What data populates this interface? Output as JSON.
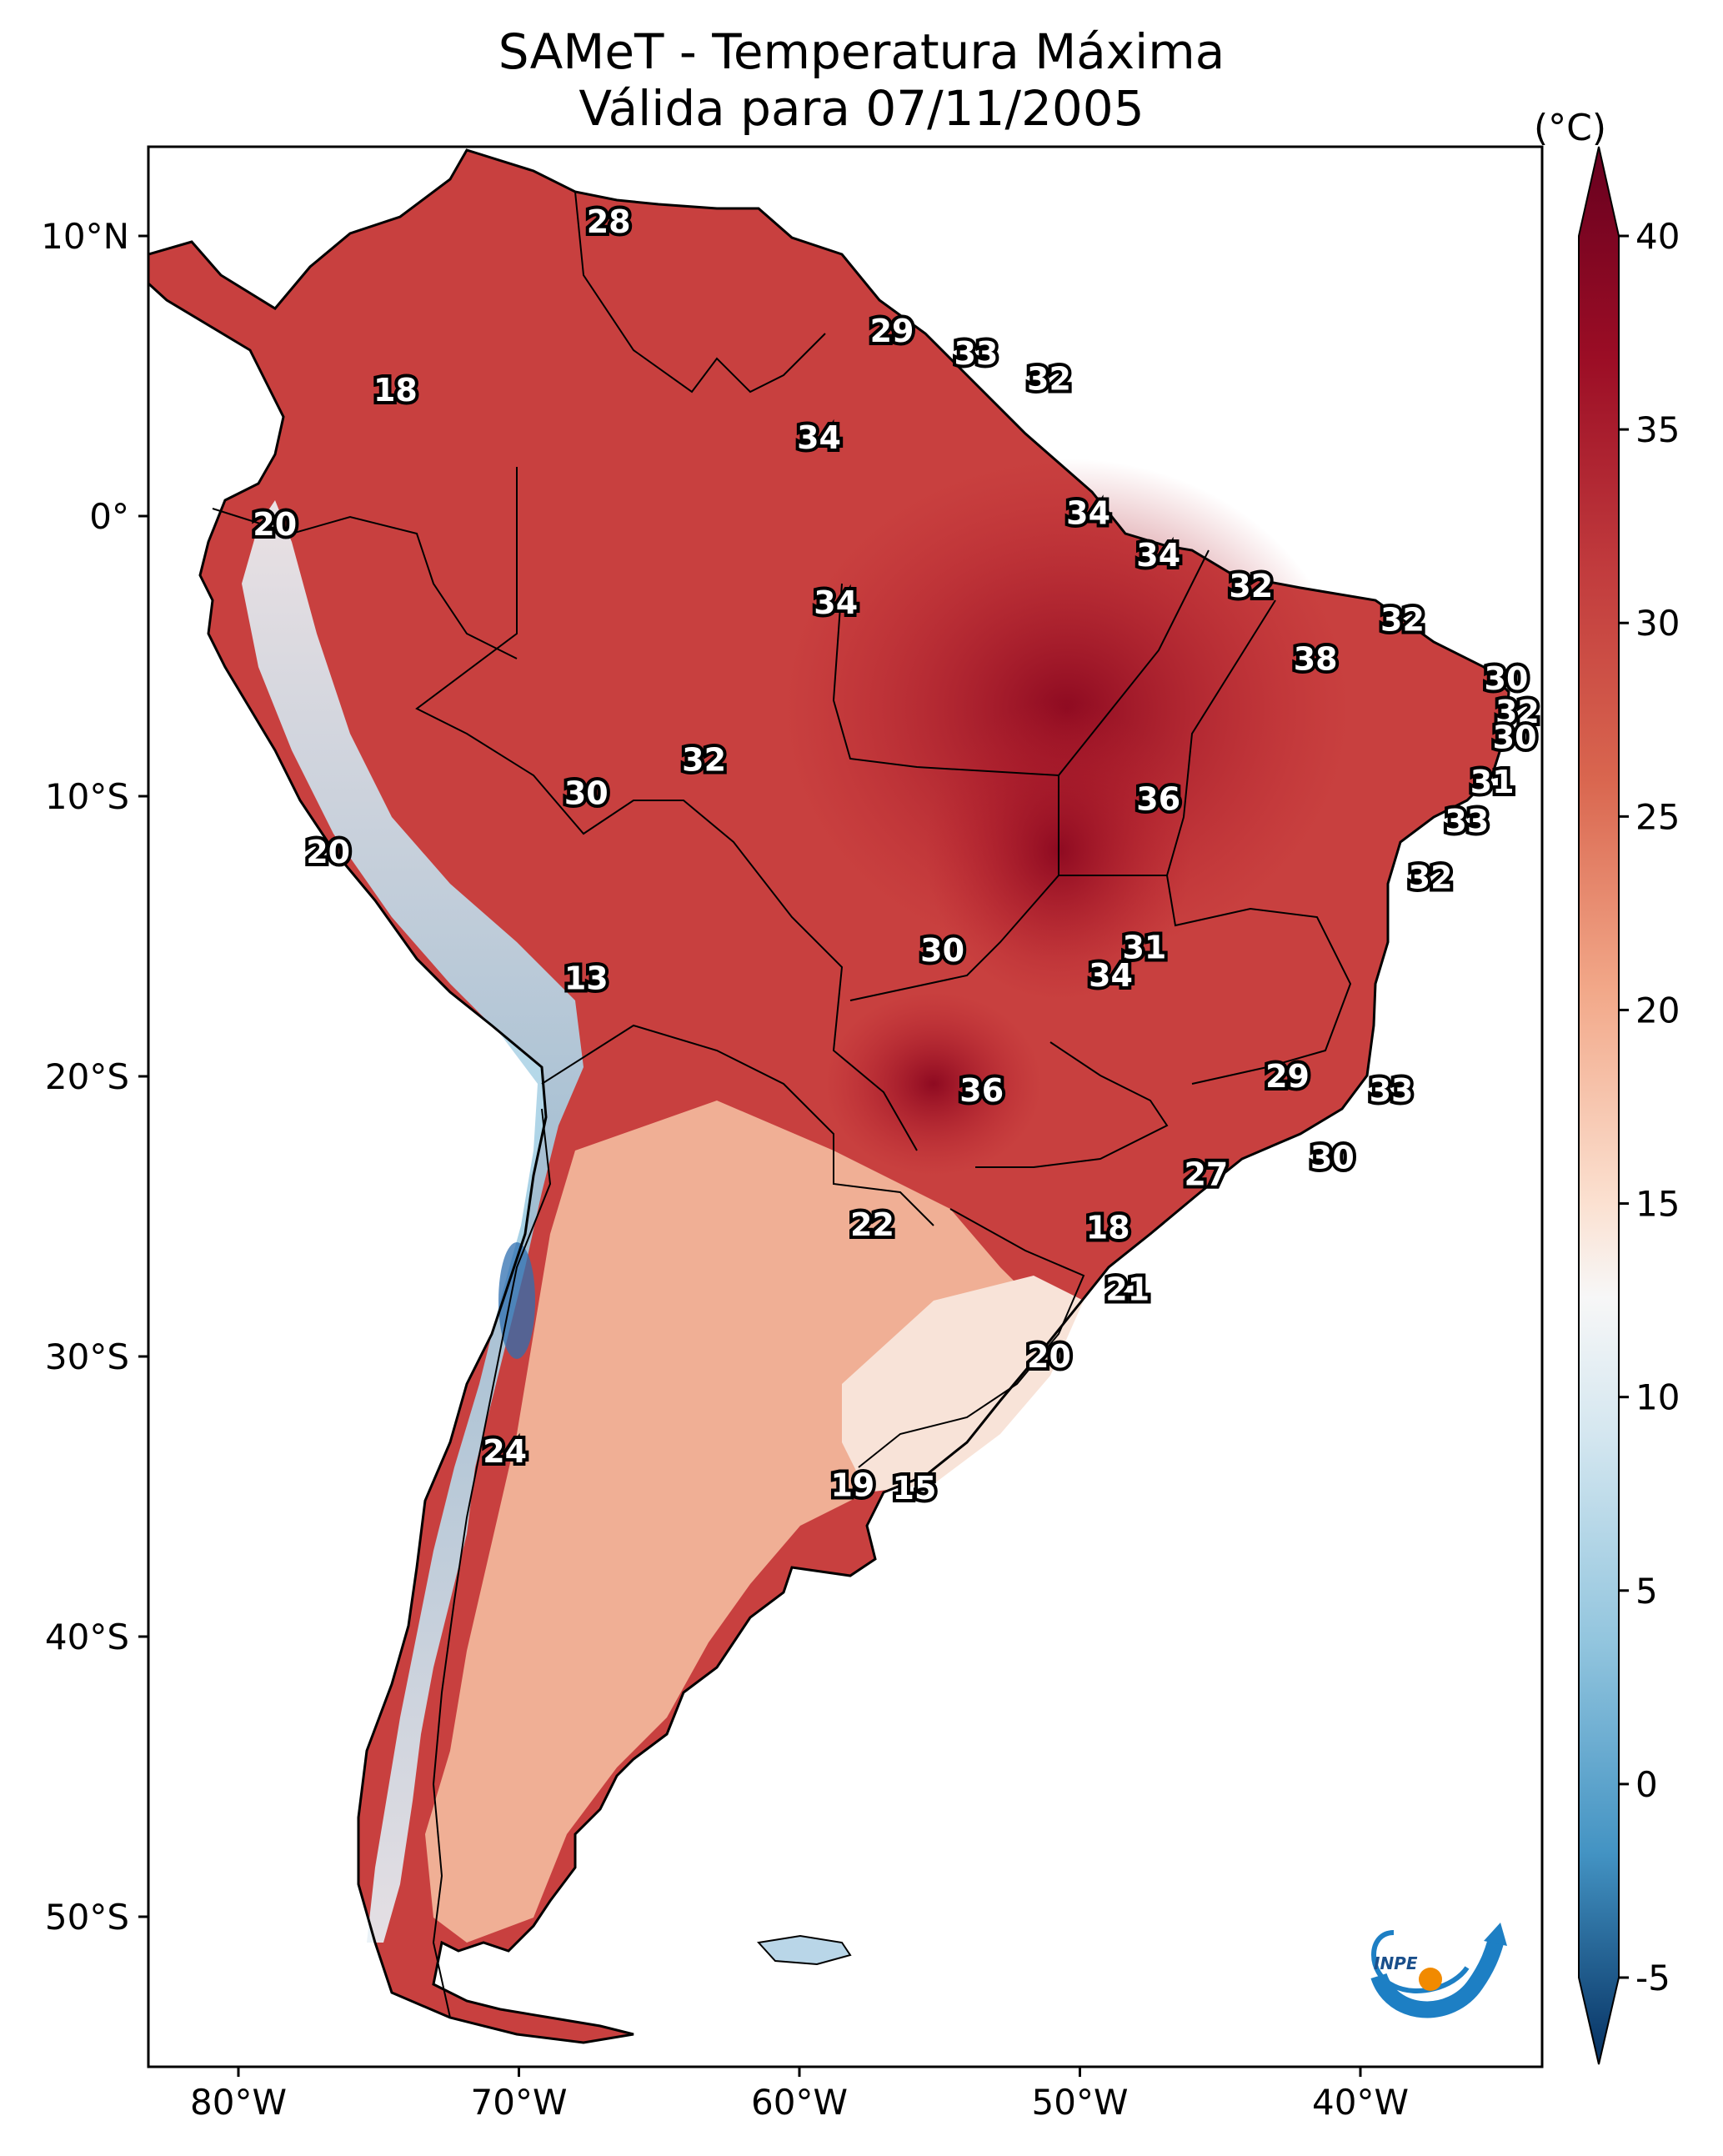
{
  "title": {
    "line1": "SAMeT - Temperatura Máxima",
    "line2": "Válida para 07/11/2005"
  },
  "colorbar": {
    "unit": "(°C)",
    "ticks": [
      "40",
      "35",
      "30",
      "25",
      "20",
      "15",
      "10",
      "5",
      "0",
      "-5"
    ],
    "min": -5,
    "max": 40
  },
  "axes": {
    "lon_labels": [
      "80°W",
      "70°W",
      "60°W",
      "50°W",
      "40°W"
    ],
    "lat_labels": [
      "10°N",
      "0°",
      "10°S",
      "20°S",
      "30°S",
      "40°S",
      "50°S"
    ]
  },
  "values": [
    {
      "text": "28",
      "lon": -66.8,
      "lat": 10.5
    },
    {
      "text": "29",
      "lon": -56.7,
      "lat": 6.6
    },
    {
      "text": "33",
      "lon": -53.7,
      "lat": 5.8
    },
    {
      "text": "32",
      "lon": -51.1,
      "lat": 4.9
    },
    {
      "text": "18",
      "lon": -74.4,
      "lat": 4.5
    },
    {
      "text": "34",
      "lon": -59.3,
      "lat": 2.8
    },
    {
      "text": "34",
      "lon": -49.7,
      "lat": 0.1
    },
    {
      "text": "20",
      "lon": -78.7,
      "lat": -0.3
    },
    {
      "text": "34",
      "lon": -47.2,
      "lat": -1.4
    },
    {
      "text": "32",
      "lon": -43.9,
      "lat": -2.5
    },
    {
      "text": "34",
      "lon": -58.7,
      "lat": -3.1
    },
    {
      "text": "32",
      "lon": -38.5,
      "lat": -3.7
    },
    {
      "text": "38",
      "lon": -41.6,
      "lat": -5.1
    },
    {
      "text": "30",
      "lon": -34.8,
      "lat": -5.8
    },
    {
      "text": "32",
      "lon": -34.4,
      "lat": -7.0
    },
    {
      "text": "30",
      "lon": -34.5,
      "lat": -7.9
    },
    {
      "text": "32",
      "lon": -63.4,
      "lat": -8.7
    },
    {
      "text": "31",
      "lon": -35.3,
      "lat": -9.5
    },
    {
      "text": "30",
      "lon": -67.6,
      "lat": -9.9
    },
    {
      "text": "36",
      "lon": -47.2,
      "lat": -10.1
    },
    {
      "text": "33",
      "lon": -36.2,
      "lat": -10.9
    },
    {
      "text": "20",
      "lon": -76.8,
      "lat": -12.0
    },
    {
      "text": "32",
      "lon": -37.5,
      "lat": -12.9
    },
    {
      "text": "31",
      "lon": -47.7,
      "lat": -15.4
    },
    {
      "text": "30",
      "lon": -54.9,
      "lat": -15.5
    },
    {
      "text": "34",
      "lon": -48.9,
      "lat": -16.4
    },
    {
      "text": "13",
      "lon": -67.6,
      "lat": -16.5
    },
    {
      "text": "29",
      "lon": -42.6,
      "lat": -20.0
    },
    {
      "text": "33",
      "lon": -38.9,
      "lat": -20.5
    },
    {
      "text": "36",
      "lon": -53.5,
      "lat": -20.5
    },
    {
      "text": "30",
      "lon": -41.0,
      "lat": -22.9
    },
    {
      "text": "27",
      "lon": -45.5,
      "lat": -23.5
    },
    {
      "text": "22",
      "lon": -57.4,
      "lat": -25.3
    },
    {
      "text": "18",
      "lon": -49.0,
      "lat": -25.4
    },
    {
      "text": "21",
      "lon": -48.3,
      "lat": -27.6
    },
    {
      "text": "20",
      "lon": -51.1,
      "lat": -30.0
    },
    {
      "text": "24",
      "lon": -70.5,
      "lat": -33.4
    },
    {
      "text": "19",
      "lon": -58.1,
      "lat": -34.6
    },
    {
      "text": "15",
      "lon": -55.9,
      "lat": -34.7
    }
  ],
  "logo": {
    "text": "INPE"
  }
}
